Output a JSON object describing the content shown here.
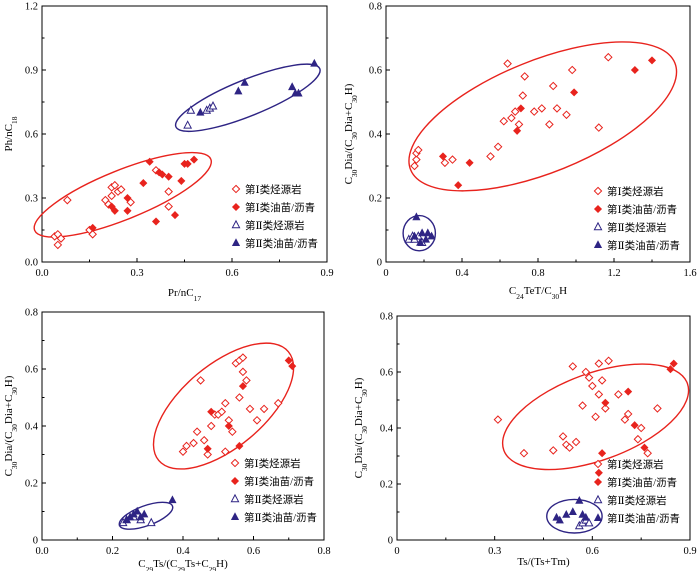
{
  "colors": {
    "red": "#e8231d",
    "navy": "#2e2484",
    "axis": "#000000"
  },
  "legend_entries": [
    "第Ⅰ类烃源岩",
    "第Ⅰ类油苗/沥青",
    "第Ⅱ类烃源岩",
    "第Ⅱ类油苗/沥青"
  ],
  "chart_data": [
    {
      "type": "scatter",
      "xlabel": "Pr/nC17",
      "ylabel": "Ph/nC18",
      "xlim": [
        0,
        0.9
      ],
      "ylim": [
        0,
        1.2
      ],
      "xticks": [
        "0.0",
        "0.3",
        "0.6",
        "0.9"
      ],
      "yticks": [
        "0.0",
        "0.3",
        "0.6",
        "0.9",
        "1.2"
      ],
      "legend": "bottom-right",
      "series": [
        {
          "name": "第Ⅰ类烃源岩",
          "marker": "open-diamond",
          "x": [
            0.04,
            0.05,
            0.05,
            0.06,
            0.08,
            0.15,
            0.16,
            0.2,
            0.21,
            0.22,
            0.22,
            0.23,
            0.24,
            0.25,
            0.28,
            0.36,
            0.4,
            0.4
          ],
          "y": [
            0.12,
            0.13,
            0.08,
            0.11,
            0.29,
            0.15,
            0.13,
            0.29,
            0.27,
            0.31,
            0.35,
            0.36,
            0.33,
            0.34,
            0.28,
            0.43,
            0.33,
            0.26
          ]
        },
        {
          "name": "第Ⅰ类油苗/沥青",
          "marker": "filled-diamond",
          "x": [
            0.16,
            0.22,
            0.23,
            0.27,
            0.27,
            0.32,
            0.34,
            0.36,
            0.37,
            0.38,
            0.4,
            0.42,
            0.44,
            0.45,
            0.46,
            0.48
          ],
          "y": [
            0.16,
            0.26,
            0.24,
            0.3,
            0.24,
            0.37,
            0.47,
            0.19,
            0.42,
            0.41,
            0.4,
            0.22,
            0.38,
            0.46,
            0.46,
            0.48
          ]
        },
        {
          "name": "第Ⅱ类烃源岩",
          "marker": "open-triangle",
          "x": [
            0.46,
            0.47,
            0.52,
            0.53,
            0.54
          ],
          "y": [
            0.64,
            0.71,
            0.71,
            0.72,
            0.73
          ]
        },
        {
          "name": "第Ⅱ类油苗/沥青",
          "marker": "filled-triangle",
          "x": [
            0.5,
            0.62,
            0.64,
            0.79,
            0.8,
            0.81,
            0.86
          ],
          "y": [
            0.7,
            0.8,
            0.84,
            0.82,
            0.79,
            0.79,
            0.93
          ]
        }
      ]
    },
    {
      "type": "scatter",
      "xlabel": "C24TeT/C30H",
      "ylabel": "C30Dia/(C30Dia+C30H)",
      "xlim": [
        0,
        1.6
      ],
      "ylim": [
        0,
        0.8
      ],
      "xticks": [
        "0",
        "0.4",
        "0.8",
        "1.2",
        "1.6"
      ],
      "yticks": [
        "0",
        "0.2",
        "0.4",
        "0.6",
        "0.8"
      ],
      "legend": "bottom-right",
      "series": [
        {
          "name": "第Ⅰ类烃源岩",
          "marker": "open-diamond",
          "x": [
            0.15,
            0.16,
            0.16,
            0.17,
            0.31,
            0.35,
            0.55,
            0.59,
            0.62,
            0.64,
            0.66,
            0.68,
            0.7,
            0.72,
            0.73,
            0.78,
            0.82,
            0.86,
            0.88,
            0.9,
            0.95,
            0.98,
            1.12,
            1.17
          ],
          "y": [
            0.3,
            0.32,
            0.34,
            0.35,
            0.31,
            0.32,
            0.33,
            0.36,
            0.44,
            0.62,
            0.45,
            0.47,
            0.43,
            0.52,
            0.58,
            0.47,
            0.48,
            0.43,
            0.55,
            0.48,
            0.46,
            0.6,
            0.42,
            0.64
          ]
        },
        {
          "name": "第Ⅰ类油苗/沥青",
          "marker": "filled-diamond",
          "x": [
            0.3,
            0.38,
            0.44,
            0.69,
            0.71,
            0.99,
            1.31,
            1.4
          ],
          "y": [
            0.33,
            0.24,
            0.31,
            0.41,
            0.48,
            0.53,
            0.6,
            0.63
          ]
        },
        {
          "name": "第Ⅱ类烃源岩",
          "marker": "open-triangle",
          "x": [
            0.12,
            0.14,
            0.15,
            0.17,
            0.19
          ],
          "y": [
            0.07,
            0.08,
            0.07,
            0.08,
            0.06
          ]
        },
        {
          "name": "第Ⅱ类油苗/沥青",
          "marker": "filled-triangle",
          "x": [
            0.15,
            0.16,
            0.18,
            0.19,
            0.21,
            0.22,
            0.24
          ],
          "y": [
            0.08,
            0.14,
            0.06,
            0.09,
            0.07,
            0.09,
            0.08
          ]
        }
      ]
    },
    {
      "type": "scatter",
      "xlabel": "C29Ts/(C29Ts+C29H)",
      "ylabel": "C30Dia/(C30Dia+C30H)",
      "xlim": [
        0,
        0.8
      ],
      "ylim": [
        0,
        0.8
      ],
      "xticks": [
        "0.0",
        "0.2",
        "0.4",
        "0.6",
        "0.8"
      ],
      "yticks": [
        "0",
        "0.2",
        "0.4",
        "0.6",
        "0.8"
      ],
      "legend": "bottom-right",
      "series": [
        {
          "name": "第Ⅰ类烃源岩",
          "marker": "open-diamond",
          "x": [
            0.4,
            0.41,
            0.43,
            0.44,
            0.45,
            0.46,
            0.47,
            0.48,
            0.49,
            0.5,
            0.51,
            0.52,
            0.52,
            0.53,
            0.54,
            0.55,
            0.56,
            0.56,
            0.57,
            0.57,
            0.58,
            0.59,
            0.61,
            0.63,
            0.67
          ],
          "y": [
            0.31,
            0.33,
            0.34,
            0.38,
            0.56,
            0.35,
            0.3,
            0.4,
            0.44,
            0.44,
            0.45,
            0.31,
            0.48,
            0.42,
            0.38,
            0.62,
            0.63,
            0.5,
            0.64,
            0.59,
            0.56,
            0.46,
            0.42,
            0.46,
            0.48
          ]
        },
        {
          "name": "第Ⅰ类油苗/沥青",
          "marker": "filled-diamond",
          "x": [
            0.47,
            0.48,
            0.53,
            0.56,
            0.57,
            0.7,
            0.71
          ],
          "y": [
            0.32,
            0.45,
            0.4,
            0.33,
            0.54,
            0.63,
            0.61
          ]
        },
        {
          "name": "第Ⅱ类烃源岩",
          "marker": "open-triangle",
          "x": [
            0.23,
            0.24,
            0.26,
            0.28,
            0.31
          ],
          "y": [
            0.06,
            0.07,
            0.08,
            0.07,
            0.06
          ]
        },
        {
          "name": "第Ⅱ类油苗/沥青",
          "marker": "filled-triangle",
          "x": [
            0.24,
            0.25,
            0.26,
            0.27,
            0.28,
            0.29,
            0.37
          ],
          "y": [
            0.07,
            0.08,
            0.09,
            0.1,
            0.08,
            0.09,
            0.14
          ]
        }
      ]
    },
    {
      "type": "scatter",
      "xlabel": "Ts/(Ts+Tm)",
      "ylabel": "C30Dia/(C30Dia+C30H)",
      "xlim": [
        0,
        0.9
      ],
      "ylim": [
        0,
        0.8
      ],
      "xticks": [
        "0",
        "0.3",
        "0.6",
        "0.9"
      ],
      "yticks": [
        "0",
        "0.2",
        "0.4",
        "0.6",
        "0.8"
      ],
      "legend": "bottom-right",
      "series": [
        {
          "name": "第Ⅰ类烃源岩",
          "marker": "open-diamond",
          "x": [
            0.31,
            0.39,
            0.48,
            0.51,
            0.52,
            0.53,
            0.54,
            0.55,
            0.57,
            0.58,
            0.59,
            0.6,
            0.61,
            0.62,
            0.62,
            0.63,
            0.64,
            0.65,
            0.68,
            0.7,
            0.71,
            0.74,
            0.75,
            0.77,
            0.8
          ],
          "y": [
            0.43,
            0.31,
            0.32,
            0.37,
            0.34,
            0.33,
            0.62,
            0.35,
            0.48,
            0.6,
            0.58,
            0.55,
            0.44,
            0.52,
            0.63,
            0.57,
            0.47,
            0.64,
            0.52,
            0.43,
            0.45,
            0.36,
            0.4,
            0.31,
            0.47
          ]
        },
        {
          "name": "第Ⅰ类油苗/沥青",
          "marker": "filled-diamond",
          "x": [
            0.62,
            0.63,
            0.64,
            0.71,
            0.73,
            0.76,
            0.84,
            0.85
          ],
          "y": [
            0.24,
            0.31,
            0.49,
            0.53,
            0.41,
            0.33,
            0.61,
            0.63
          ]
        },
        {
          "name": "第Ⅱ类烃源岩",
          "marker": "open-triangle",
          "x": [
            0.56,
            0.57,
            0.58,
            0.59
          ],
          "y": [
            0.05,
            0.06,
            0.07,
            0.06
          ]
        },
        {
          "name": "第Ⅱ类油苗/沥青",
          "marker": "filled-triangle",
          "x": [
            0.49,
            0.5,
            0.52,
            0.54,
            0.56,
            0.57,
            0.58
          ],
          "y": [
            0.08,
            0.07,
            0.09,
            0.1,
            0.14,
            0.09,
            0.08
          ]
        }
      ]
    }
  ]
}
